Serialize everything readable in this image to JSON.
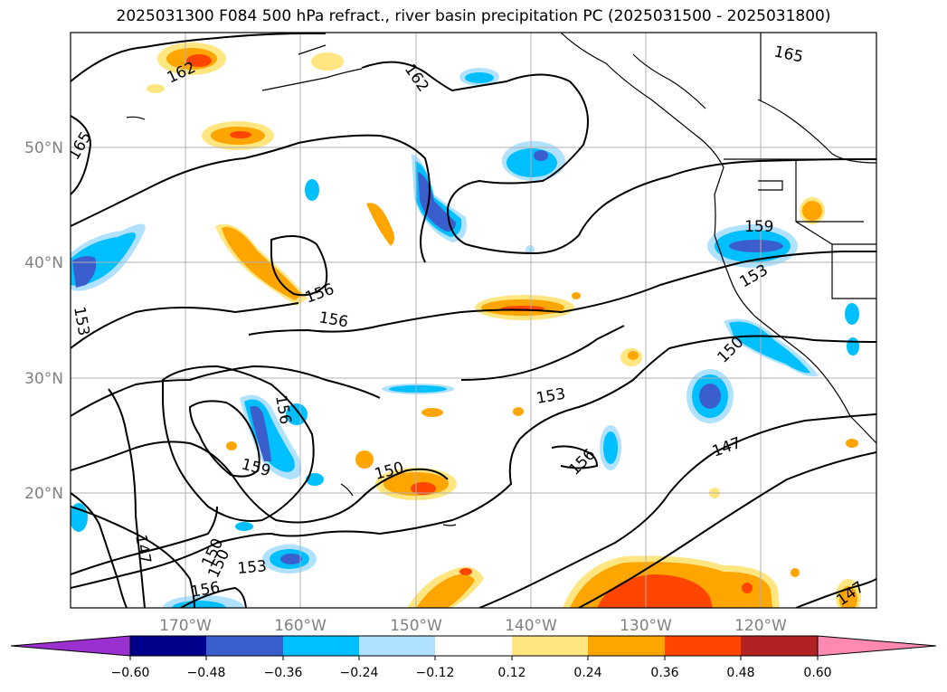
{
  "title": "2025031300 F084 500 hPa refract., river basin precipitation PC (2025031500 - 2025031800)",
  "map": {
    "lat_labels": [
      "50°N",
      "40°N",
      "30°N",
      "20°N"
    ],
    "lon_labels": [
      "170°W",
      "160°W",
      "150°W",
      "140°W",
      "130°W",
      "120°W"
    ],
    "contour_labels": [
      "165",
      "162",
      "162",
      "165",
      "159",
      "156",
      "156",
      "153",
      "153",
      "150",
      "153",
      "156",
      "159",
      "150",
      "156",
      "150",
      "147",
      "147",
      "153",
      "150",
      "147",
      "156"
    ],
    "colors": {
      "land_line": "#000000",
      "grid": "#b0b0b0",
      "contour": "#000000"
    }
  },
  "colorbar": {
    "ticks": [
      "−0.60",
      "−0.48",
      "−0.36",
      "−0.24",
      "−0.12",
      "0.12",
      "0.24",
      "0.36",
      "0.48",
      "0.60"
    ],
    "colors": [
      "#9b30d0",
      "#00008b",
      "#3a5fcd",
      "#00bfff",
      "#b0e2ff",
      "#ffffff",
      "#ffe680",
      "#ffa500",
      "#ff4500",
      "#b22222",
      "#ff89b0"
    ]
  }
}
